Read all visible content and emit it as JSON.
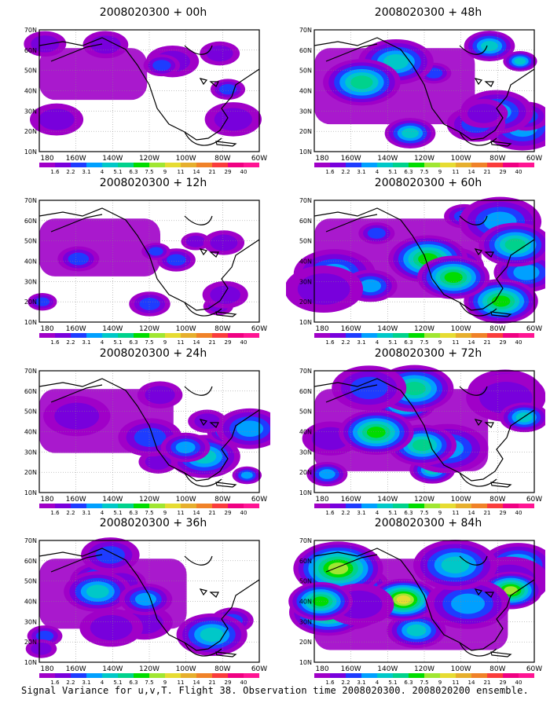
{
  "panels": [
    {
      "title": "2008020300 + 00h",
      "intensity": 0.15
    },
    {
      "title": "2008020300 + 48h",
      "intensity": 0.55
    },
    {
      "title": "2008020300 + 12h",
      "intensity": 0.25
    },
    {
      "title": "2008020300 + 60h",
      "intensity": 0.6
    },
    {
      "title": "2008020300 + 24h",
      "intensity": 0.35
    },
    {
      "title": "2008020300 + 72h",
      "intensity": 0.65
    },
    {
      "title": "2008020300 + 36h",
      "intensity": 0.45
    },
    {
      "title": "2008020300 + 84h",
      "intensity": 0.8
    }
  ],
  "axes": {
    "lat_labels": [
      "70N",
      "60N",
      "50N",
      "40N",
      "30N",
      "20N",
      "10N"
    ],
    "lon_labels": [
      "180",
      "160W",
      "140W",
      "120W",
      "100W",
      "80W",
      "60W"
    ]
  },
  "colorbar": {
    "labels": [
      "1.6",
      "2.2",
      "3.1",
      "4",
      "5.1",
      "6.3",
      "7.5",
      "9",
      "11",
      "14",
      "21",
      "29",
      "40"
    ],
    "colors": [
      "#a000c8",
      "#7800dc",
      "#1e3cff",
      "#00a0ff",
      "#00c8c8",
      "#00d28c",
      "#00dc00",
      "#a0e632",
      "#e6dc32",
      "#e6af2d",
      "#f08228",
      "#fa3c3c",
      "#f00082",
      "#ff1493"
    ]
  },
  "caption": "Signal Variance for u,v,T. Flight 38. Observation time 2008020300. 2008020200 ensemble."
}
